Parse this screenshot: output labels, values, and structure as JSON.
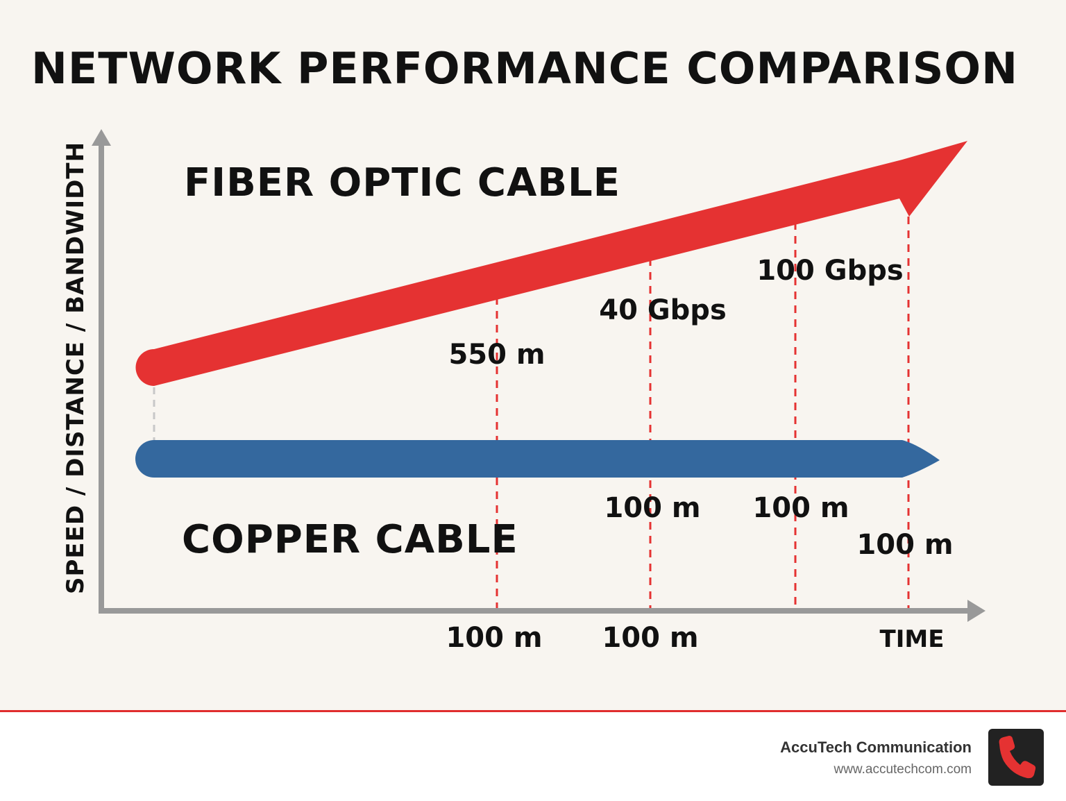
{
  "title": "NETWORK PERFORMANCE COMPARISON",
  "colors": {
    "fiber": "#e53232",
    "copper": "#34689e",
    "axis": "#999999",
    "marker": "#e53232",
    "background": "#f8f5f0"
  },
  "chart_data": {
    "type": "line",
    "title": "NETWORK PERFORMANCE COMPARISON",
    "xlabel": "TIME",
    "ylabel": "SPEED / DISTANCE / BANDWIDTH",
    "grid": false,
    "series": [
      {
        "name": "FIBER OPTIC CABLE",
        "trend": "rising"
      },
      {
        "name": "COPPER CABLE",
        "trend": "flat"
      }
    ],
    "markers": [
      {
        "fiber_label": "550 m",
        "copper_label": "",
        "x_label": "100 m"
      },
      {
        "fiber_label": "40 Gbps",
        "copper_label": "100 m",
        "x_label": "100 m"
      },
      {
        "fiber_label": "100 Gbps",
        "copper_label": "100 m",
        "x_label": ""
      },
      {
        "fiber_label": "",
        "copper_label": "100 m",
        "x_label": ""
      }
    ]
  },
  "footer": {
    "company": "AccuTech Communication",
    "url": "www.accutechcom.com",
    "logo_icon": "phone-icon"
  }
}
